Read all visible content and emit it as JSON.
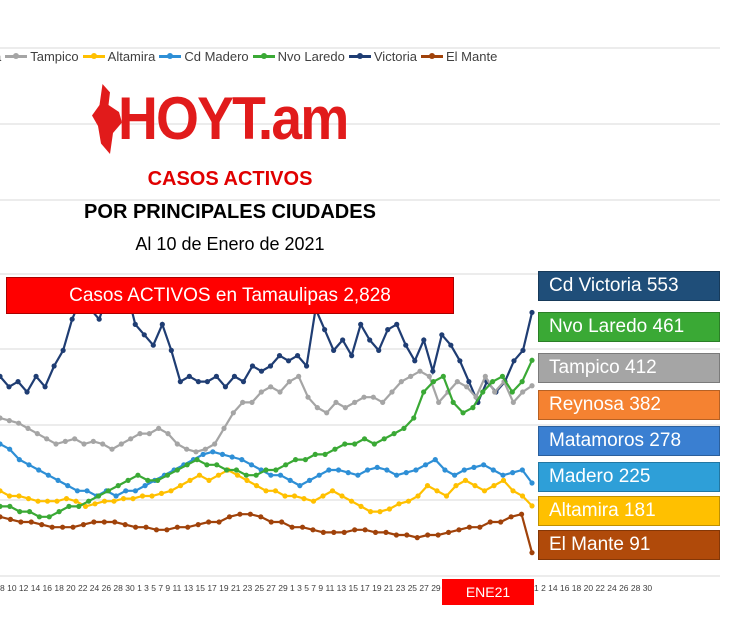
{
  "legend": [
    {
      "label": "a",
      "color": "#1f4e9c"
    },
    {
      "label": "Tampico",
      "color": "#a5a5a5"
    },
    {
      "label": "Altamira",
      "color": "#ffc000"
    },
    {
      "label": "Cd Madero",
      "color": "#2e8fd6"
    },
    {
      "label": "Nvo Laredo",
      "color": "#3aa935"
    },
    {
      "label": "Victoria",
      "color": "#1f3d73"
    },
    {
      "label": "El Mante",
      "color": "#a0420a"
    }
  ],
  "logo": {
    "prefix": "HOY",
    "letter": "T",
    "suffix": ".am"
  },
  "titles": {
    "line1": "CASOS ACTIVOS",
    "line2": "POR PRINCIPALES CIUDADES",
    "line3": "Al 10 de Enero de 2021"
  },
  "total_box": "Casos ACTIVOS en Tamaulipas  2,828",
  "city_boxes": [
    {
      "label": "Cd Victoria 553",
      "color": "#1f4e79"
    },
    {
      "label": "Nvo Laredo 461",
      "color": "#3aa935"
    },
    {
      "label": "Tampico 412",
      "color": "#a5a5a5"
    },
    {
      "label": "Reynosa 382",
      "color": "#f58231"
    },
    {
      "label": "Matamoros 278",
      "color": "#3a7fd1"
    },
    {
      "label": "Madero 225",
      "color": "#2e9fd8"
    },
    {
      "label": "Altamira 181",
      "color": "#ffc000"
    },
    {
      "label": "El Mante 91",
      "color": "#b04a0a"
    }
  ],
  "ene_label": "ENE21",
  "x_axis_ticks": "8 10 12 14 16 18 20 22 24 26 28 30 1 3 5 7 9 11 13 15 17 19 21 23 25 27 29 1 3 5 7 9 11 13 15 17 19 21 23 25 27 29 2",
  "x_axis_ticks_right": "1 2 14 16 18 20 22 24 26 28 30",
  "chart_data": {
    "type": "line",
    "title": "CASOS ACTIVOS POR PRINCIPALES CIUDADES",
    "subtitle": "Al 10 de Enero de 2021",
    "ylim": [
      0,
      1000
    ],
    "grid": true,
    "legend_position": "top",
    "series": [
      {
        "name": "Victoria",
        "color": "#1f3d73",
        "values": [
          430,
          410,
          420,
          400,
          430,
          410,
          450,
          480,
          540,
          580,
          560,
          540,
          590,
          560,
          600,
          530,
          510,
          490,
          530,
          480,
          420,
          430,
          420,
          420,
          430,
          410,
          430,
          420,
          450,
          440,
          450,
          470,
          460,
          470,
          450,
          560,
          520,
          480,
          500,
          470,
          530,
          500,
          480,
          520,
          530,
          490,
          460,
          500,
          440,
          510,
          490,
          460,
          420,
          380,
          420,
          400,
          420,
          460,
          480,
          553
        ]
      },
      {
        "name": "Tampico",
        "color": "#a5a5a5",
        "values": [
          350,
          345,
          340,
          330,
          320,
          310,
          300,
          305,
          310,
          300,
          305,
          300,
          290,
          300,
          310,
          320,
          320,
          330,
          320,
          300,
          290,
          285,
          290,
          300,
          330,
          360,
          380,
          380,
          400,
          410,
          400,
          420,
          430,
          390,
          370,
          360,
          380,
          370,
          380,
          390,
          390,
          380,
          400,
          420,
          430,
          440,
          430,
          380,
          400,
          420,
          410,
          390,
          430,
          400,
          420,
          380,
          400,
          412
        ]
      },
      {
        "name": "Altamira",
        "color": "#ffc000",
        "values": [
          210,
          200,
          200,
          195,
          190,
          190,
          190,
          195,
          190,
          180,
          185,
          190,
          190,
          195,
          195,
          200,
          200,
          205,
          210,
          220,
          230,
          240,
          230,
          240,
          250,
          240,
          230,
          220,
          210,
          210,
          200,
          200,
          195,
          190,
          200,
          210,
          200,
          190,
          180,
          170,
          170,
          175,
          185,
          190,
          200,
          220,
          210,
          200,
          220,
          230,
          220,
          210,
          220,
          230,
          210,
          200,
          181
        ]
      },
      {
        "name": "Cd Madero",
        "color": "#2e8fd6",
        "values": [
          300,
          290,
          270,
          260,
          250,
          240,
          230,
          220,
          210,
          210,
          200,
          210,
          200,
          210,
          210,
          220,
          230,
          240,
          250,
          260,
          270,
          280,
          285,
          280,
          275,
          270,
          260,
          250,
          240,
          240,
          230,
          220,
          230,
          240,
          250,
          250,
          245,
          240,
          250,
          255,
          250,
          240,
          245,
          250,
          260,
          270,
          250,
          240,
          250,
          255,
          260,
          250,
          240,
          245,
          250,
          225
        ]
      },
      {
        "name": "Nvo Laredo",
        "color": "#3aa935",
        "values": [
          180,
          180,
          170,
          170,
          160,
          160,
          170,
          180,
          180,
          190,
          200,
          210,
          220,
          230,
          240,
          230,
          230,
          240,
          250,
          260,
          270,
          260,
          260,
          250,
          250,
          240,
          240,
          250,
          250,
          260,
          270,
          270,
          280,
          280,
          290,
          300,
          300,
          310,
          300,
          310,
          320,
          330,
          350,
          400,
          420,
          430,
          380,
          360,
          370,
          400,
          420,
          430,
          400,
          420,
          461
        ]
      },
      {
        "name": "El Mante",
        "color": "#a0420a",
        "values": [
          160,
          155,
          150,
          150,
          145,
          140,
          140,
          140,
          145,
          150,
          150,
          150,
          145,
          140,
          140,
          135,
          135,
          140,
          140,
          145,
          150,
          150,
          160,
          165,
          165,
          160,
          150,
          150,
          140,
          140,
          135,
          130,
          130,
          130,
          135,
          135,
          130,
          130,
          125,
          125,
          120,
          125,
          125,
          130,
          135,
          140,
          140,
          150,
          150,
          160,
          165,
          91
        ]
      }
    ]
  }
}
